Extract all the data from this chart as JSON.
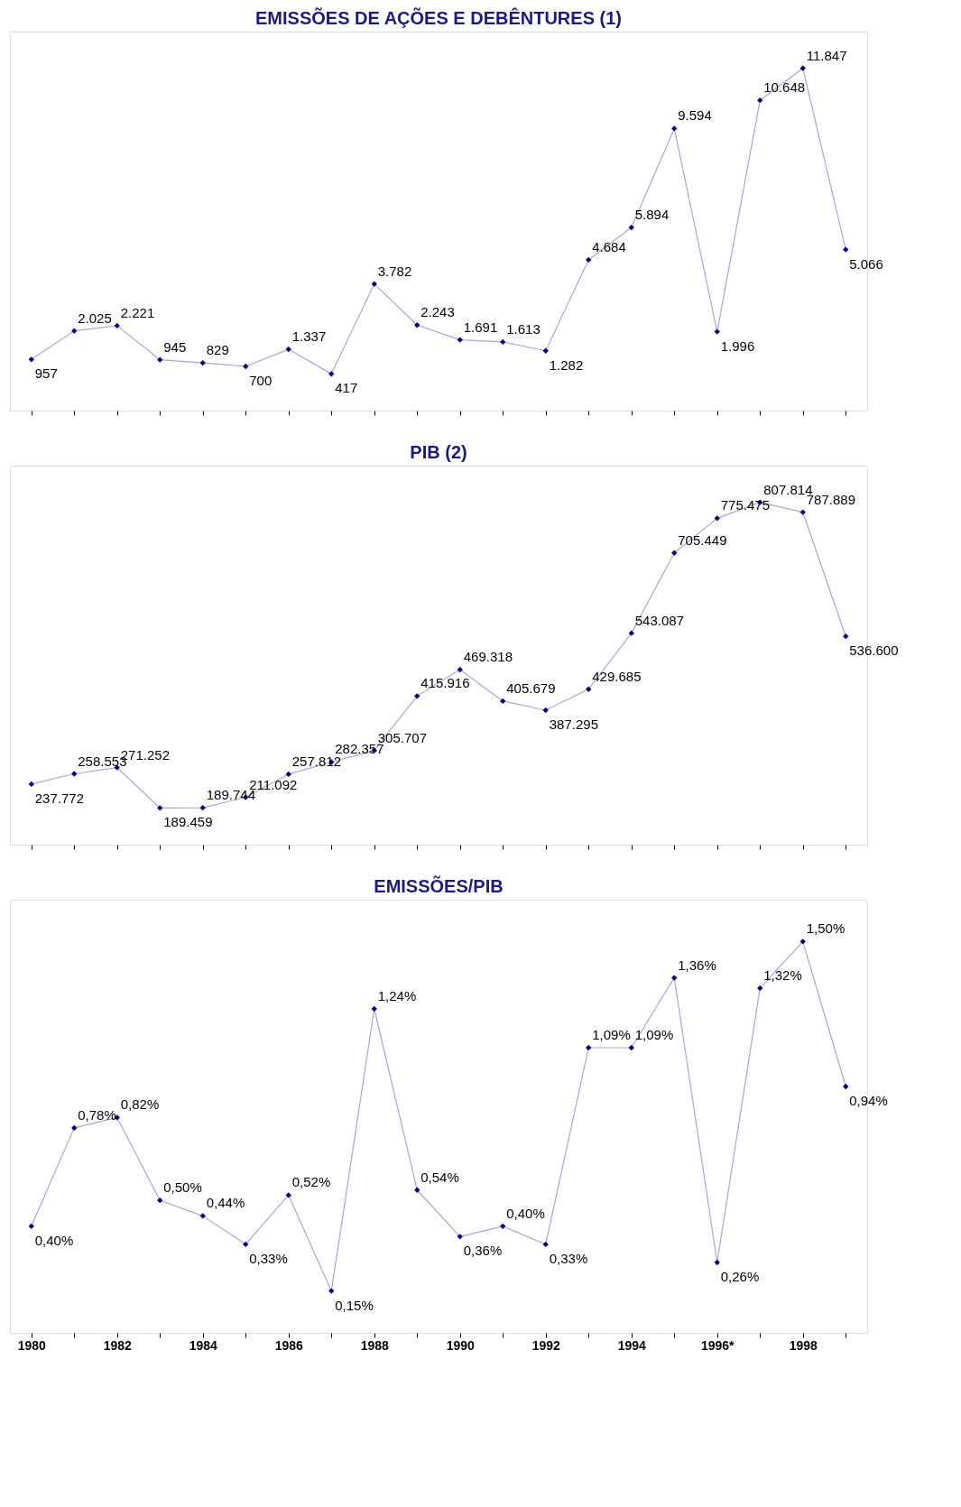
{
  "chart_data": [
    {
      "type": "line",
      "title": "EMISSÕES DE AÇÕES E DEBÊNTURES (1)",
      "categories": [
        null,
        null,
        null,
        null,
        null,
        null,
        null,
        null,
        null,
        null,
        null,
        null,
        null,
        null,
        null,
        null,
        null,
        null,
        null,
        null
      ],
      "tick_labels": false,
      "marker": "diamond",
      "line_style": "solid",
      "grid": false,
      "series": [
        {
          "color": "#000080",
          "values": [
            957,
            2025,
            2221,
            945,
            829,
            700,
            1337,
            417,
            3782,
            2243,
            1691,
            1613,
            1282,
            4684,
            5894,
            9594,
            1996,
            10648,
            11847,
            5066
          ],
          "value_labels": [
            "957",
            "2.025",
            "2.221",
            "945",
            "829",
            "700",
            "1.337",
            "417",
            "3.782",
            "2.243",
            "1.691",
            "1.613",
            "1.282",
            "4.684",
            "5.894",
            "9.594",
            "1.996",
            "10.648",
            "11.847",
            "5.066"
          ]
        }
      ]
    },
    {
      "type": "line",
      "title": "PIB (2)",
      "categories": [
        null,
        null,
        null,
        null,
        null,
        null,
        null,
        null,
        null,
        null,
        null,
        null,
        null,
        null,
        null,
        null,
        null,
        null,
        null,
        null
      ],
      "tick_labels": false,
      "marker": "diamond",
      "line_style": "solid",
      "grid": false,
      "series": [
        {
          "color": "#000080",
          "values": [
            237772,
            258553,
            271252,
            189459,
            189744,
            211092,
            257812,
            282357,
            305707,
            415916,
            469318,
            405679,
            387295,
            429685,
            543087,
            705449,
            775475,
            807814,
            787889,
            536600
          ],
          "value_labels": [
            "237.772",
            "258.553",
            "271.252",
            "189.459",
            "189.744",
            "211.092",
            "257.812",
            "282.357",
            "305.707",
            "415.916",
            "469.318",
            "405.679",
            "387.295",
            "429.685",
            "543.087",
            "705.449",
            "775.475",
            "807.814",
            "787.889",
            "536.600"
          ]
        }
      ]
    },
    {
      "type": "line",
      "title": "EMISSÕES/PIB",
      "categories": [
        "1980",
        null,
        "1982",
        null,
        "1984",
        null,
        "1986",
        null,
        "1988",
        null,
        "1990",
        null,
        "1992",
        null,
        "1994",
        null,
        "1996*",
        null,
        "1998",
        null
      ],
      "tick_labels": "x",
      "marker": "diamond",
      "line_style": "solid",
      "grid": false,
      "series": [
        {
          "color": "#000080",
          "values": [
            0.4,
            0.78,
            0.82,
            0.5,
            0.44,
            0.33,
            0.52,
            0.15,
            1.24,
            0.54,
            0.36,
            0.4,
            0.33,
            1.09,
            1.09,
            1.36,
            0.26,
            1.32,
            1.5,
            0.94
          ],
          "value_labels": [
            "0,40%",
            "0,78%",
            "0,82%",
            "0,50%",
            "0,44%",
            "0,33%",
            "0,52%",
            "0,15%",
            "1,24%",
            "0,54%",
            "0,36%",
            "0,40%",
            "0,33%",
            "1,09%",
            "1,09%",
            "1,36%",
            "0,26%",
            "1,32%",
            "1,50%",
            "0,94%"
          ]
        }
      ]
    }
  ]
}
